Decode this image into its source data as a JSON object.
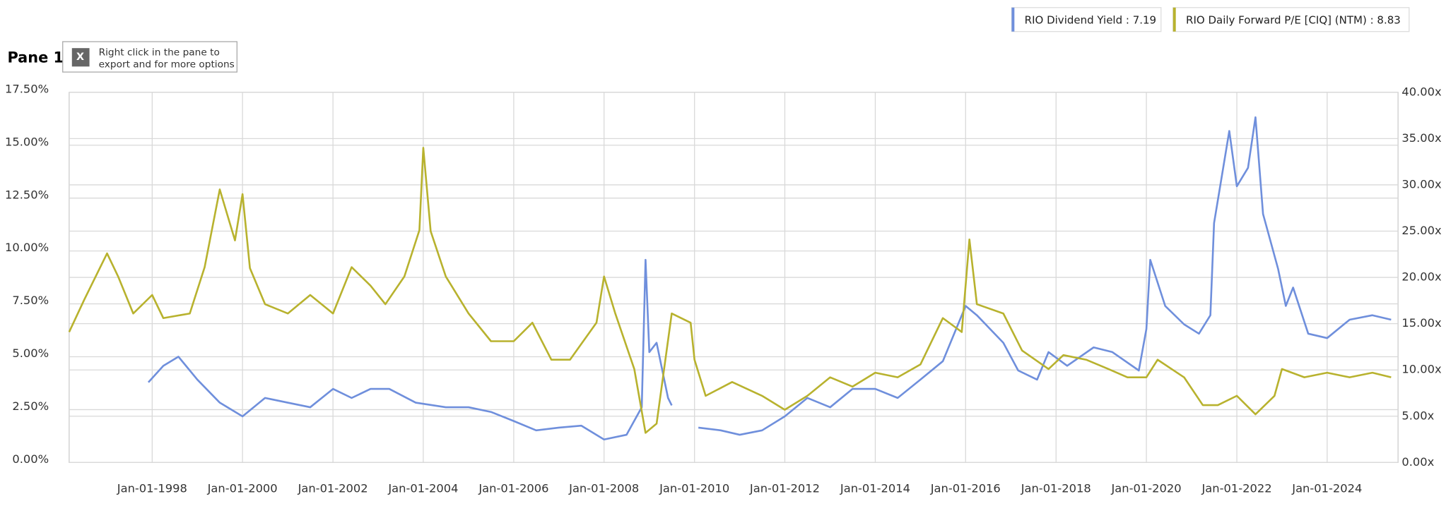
{
  "pane_label": "Pane 1",
  "note": [
    "Right click in the pane to",
    "export and for more options"
  ],
  "chart_data": {
    "type": "line",
    "legend": "top-right",
    "grid": true,
    "xlim": [
      "1996-03-01",
      "2025-07-27"
    ],
    "xticks": [
      {
        "value": "1998-01-01",
        "label": "Jan-01-1998"
      },
      {
        "value": "2000-01-01",
        "label": "Jan-01-2000"
      },
      {
        "value": "2002-01-01",
        "label": "Jan-01-2002"
      },
      {
        "value": "2004-01-01",
        "label": "Jan-01-2004"
      },
      {
        "value": "2006-01-01",
        "label": "Jan-01-2006"
      },
      {
        "value": "2008-01-01",
        "label": "Jan-01-2008"
      },
      {
        "value": "2010-01-01",
        "label": "Jan-01-2010"
      },
      {
        "value": "2012-01-01",
        "label": "Jan-01-2012"
      },
      {
        "value": "2014-01-01",
        "label": "Jan-01-2014"
      },
      {
        "value": "2016-01-01",
        "label": "Jan-01-2016"
      },
      {
        "value": "2018-01-01",
        "label": "Jan-01-2018"
      },
      {
        "value": "2020-01-01",
        "label": "Jan-01-2020"
      },
      {
        "value": "2022-01-01",
        "label": "Jan-01-2022"
      },
      {
        "value": "2024-01-01",
        "label": "Jan-01-2024"
      }
    ],
    "ylim": [
      0,
      17.5
    ],
    "yticks": [
      {
        "value": 0,
        "label": "0.00%"
      },
      {
        "value": 2.5,
        "label": "2.50%"
      },
      {
        "value": 5,
        "label": "5.00%"
      },
      {
        "value": 7.5,
        "label": "7.50%"
      },
      {
        "value": 10,
        "label": "10.00%"
      },
      {
        "value": 12.5,
        "label": "12.50%"
      },
      {
        "value": 15,
        "label": "15.00%"
      },
      {
        "value": 17.5,
        "label": "17.50%"
      }
    ],
    "y2lim": [
      0,
      40
    ],
    "y2ticks": [
      {
        "value": 0,
        "label": "0.00x"
      },
      {
        "value": 5,
        "label": "5.00x"
      },
      {
        "value": 10,
        "label": "10.00x"
      },
      {
        "value": 15,
        "label": "15.00x"
      },
      {
        "value": 20,
        "label": "20.00x"
      },
      {
        "value": 25,
        "label": "25.00x"
      },
      {
        "value": 30,
        "label": "30.00x"
      },
      {
        "value": 35,
        "label": "35.00x"
      },
      {
        "value": 40,
        "label": "40.00x"
      }
    ],
    "series": [
      {
        "name": "RIO Dividend Yield : 7.19",
        "color": "#6f8fdc",
        "x": [
          "1997-12-01",
          "1998-04-01",
          "1998-08-01",
          "1999-01-01",
          "1999-07-01",
          "2000-01-01",
          "2000-07-01",
          "2001-01-01",
          "2001-07-01",
          "2002-01-01",
          "2002-06-01",
          "2002-11-01",
          "2003-04-01",
          "2003-11-01",
          "2004-07-01",
          "2005-01-01",
          "2005-07-01",
          "2006-01-01",
          "2006-07-01",
          "2007-01-01",
          "2007-07-01",
          "2008-01-01",
          "2008-07-01",
          "2008-11-01",
          "2008-12-01",
          "2009-01-01",
          "2009-03-01",
          "2009-06-01",
          "2009-07-01",
          "2009-10-01",
          "2010-02-01",
          "2010-08-01",
          "2011-01-01",
          "2011-07-01",
          "2012-01-01",
          "2012-07-01",
          "2013-01-01",
          "2013-07-01",
          "2014-01-01",
          "2014-07-01",
          "2015-01-01",
          "2015-07-01",
          "2016-01-01",
          "2016-04-01",
          "2016-11-01",
          "2017-03-01",
          "2017-08-01",
          "2017-11-01",
          "2018-04-01",
          "2018-11-01",
          "2019-04-01",
          "2019-11-01",
          "2020-01-01",
          "2020-02-01",
          "2020-06-01",
          "2020-11-01",
          "2021-03-01",
          "2021-06-01",
          "2021-07-01",
          "2021-11-01",
          "2022-01-01",
          "2022-04-01",
          "2022-06-01",
          "2022-08-01",
          "2022-12-01",
          "2023-02-01",
          "2023-04-01",
          "2023-08-01",
          "2024-01-01",
          "2024-07-01",
          "2025-01-01",
          "2025-06-01"
        ],
        "values": [
          3.79,
          4.57,
          5.0,
          3.92,
          2.83,
          2.18,
          3.05,
          2.83,
          2.61,
          3.48,
          3.05,
          3.48,
          3.48,
          2.83,
          2.61,
          2.61,
          2.39,
          1.96,
          1.52,
          1.65,
          1.74,
          1.09,
          1.31,
          2.61,
          9.58,
          5.22,
          5.66,
          3.05,
          2.7,
          null,
          1.65,
          1.52,
          1.31,
          1.52,
          2.18,
          3.05,
          2.61,
          3.48,
          3.48,
          3.05,
          3.92,
          4.79,
          7.4,
          6.96,
          5.66,
          4.35,
          3.92,
          5.22,
          4.57,
          5.44,
          5.22,
          4.35,
          6.31,
          9.58,
          7.4,
          6.53,
          6.09,
          6.96,
          11.32,
          15.67,
          13.06,
          13.93,
          16.32,
          11.75,
          9.14,
          7.4,
          8.27,
          6.09,
          5.88,
          6.75,
          6.96,
          6.75
        ]
      },
      {
        "name": "RIO Daily Forward P/E [CIQ] (NTM) : 8.83",
        "color": "#b8b22e",
        "axis": "y2",
        "x": [
          "1996-03-01",
          "1996-07-01",
          "1997-01-01",
          "1997-04-01",
          "1997-08-01",
          "1998-01-01",
          "1998-04-01",
          "1998-11-01",
          "1999-03-01",
          "1999-07-01",
          "1999-11-01",
          "2000-01-01",
          "2000-03-01",
          "2000-07-01",
          "2001-01-01",
          "2001-07-01",
          "2002-01-01",
          "2002-06-01",
          "2002-11-01",
          "2003-03-01",
          "2003-08-01",
          "2003-12-01",
          "2004-01-01",
          "2004-03-01",
          "2004-07-01",
          "2005-01-01",
          "2005-07-01",
          "2006-01-01",
          "2006-06-01",
          "2006-11-01",
          "2007-04-01",
          "2007-11-01",
          "2008-01-01",
          "2008-04-01",
          "2008-09-01",
          "2008-12-01",
          "2009-03-01",
          "2009-07-01",
          "2009-12-01",
          "2010-01-01",
          "2010-04-01",
          "2010-11-01",
          "2011-07-01",
          "2012-01-01",
          "2012-07-01",
          "2013-01-01",
          "2013-07-01",
          "2014-01-01",
          "2014-07-01",
          "2015-01-01",
          "2015-07-01",
          "2015-12-01",
          "2016-02-01",
          "2016-04-01",
          "2016-11-01",
          "2017-04-01",
          "2017-11-01",
          "2018-03-01",
          "2018-09-01",
          "2019-03-01",
          "2019-08-01",
          "2020-01-01",
          "2020-04-01",
          "2020-11-01",
          "2021-04-01",
          "2021-08-01",
          "2022-01-01",
          "2022-06-01",
          "2022-11-01",
          "2023-01-01",
          "2023-07-01",
          "2024-01-01",
          "2024-07-01",
          "2025-01-01",
          "2025-06-01"
        ],
        "values": [
          14.1,
          17.6,
          22.6,
          20.1,
          16.1,
          18.1,
          15.6,
          16.1,
          21.1,
          29.5,
          24.0,
          29.0,
          21.0,
          17.1,
          16.1,
          18.1,
          16.1,
          21.1,
          19.1,
          17.1,
          20.1,
          25.1,
          34.0,
          25.0,
          20.1,
          16.1,
          13.1,
          13.1,
          15.1,
          11.1,
          11.1,
          15.1,
          20.1,
          16.1,
          10.1,
          3.2,
          4.2,
          16.1,
          15.1,
          11.1,
          7.2,
          8.7,
          7.2,
          5.7,
          7.2,
          9.2,
          8.2,
          9.7,
          9.2,
          10.6,
          15.6,
          14.1,
          24.1,
          17.1,
          16.1,
          12.1,
          10.1,
          11.6,
          11.1,
          10.1,
          9.2,
          9.2,
          11.1,
          9.2,
          6.2,
          6.2,
          7.2,
          5.2,
          7.2,
          10.1,
          9.2,
          9.7,
          9.2,
          9.7,
          9.2
        ]
      }
    ]
  }
}
